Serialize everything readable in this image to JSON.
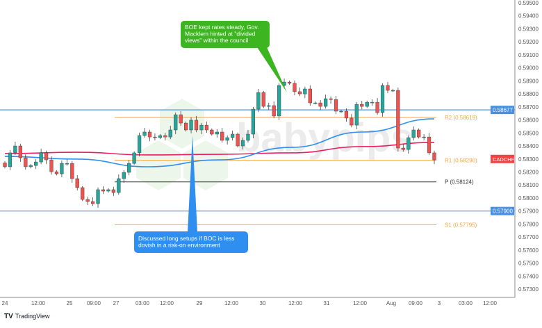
{
  "chart_data": {
    "type": "candlestick",
    "symbol": "CADCHF",
    "ylim": [
      0.5725,
      0.5955
    ],
    "y_ticks": [
      "0.59500",
      "0.59400",
      "0.59300",
      "0.59200",
      "0.59100",
      "0.59000",
      "0.58900",
      "0.58800",
      "0.58700",
      "0.58600",
      "0.58500",
      "0.58400",
      "0.58300",
      "0.58200",
      "0.58100",
      "0.58000",
      "0.57900",
      "0.57800",
      "0.57700",
      "0.57600",
      "0.57500",
      "0.57400",
      "0.57300"
    ],
    "x_ticks": [
      "24",
      "12:00",
      "25",
      "09:00",
      "27",
      "03:00",
      "12:00",
      "29",
      "12:00",
      "30",
      "12:00",
      "31",
      "12:00",
      "Aug",
      "09:00",
      "3",
      "03:00",
      "12:00"
    ],
    "closes": [
      0.5824,
      0.58347,
      0.584,
      0.58309,
      0.5824,
      0.5825,
      0.58277,
      0.58347,
      0.58293,
      0.58202,
      0.58186,
      0.58266,
      0.58266,
      0.58149,
      0.5808,
      0.57989,
      0.57973,
      0.57957,
      0.58064,
      0.58053,
      0.58064,
      0.58042,
      0.58149,
      0.58197,
      0.58266,
      0.58347,
      0.5848,
      0.58507,
      0.58469,
      0.58464,
      0.5848,
      0.58469,
      0.58523,
      0.5864,
      0.58576,
      0.58523,
      0.58598,
      0.58523,
      0.5856,
      0.58523,
      0.58491,
      0.58507,
      0.58443,
      0.58464,
      0.58491,
      0.584,
      0.58443,
      0.58491,
      0.58683,
      0.58811,
      0.58704,
      0.5871,
      0.5863,
      0.58865,
      0.58891,
      0.58881,
      0.58817,
      0.588,
      0.58838,
      0.58731,
      0.58731,
      0.58704,
      0.58763,
      0.58757,
      0.58667,
      0.58667,
      0.58614,
      0.5856,
      0.5872,
      0.58704,
      0.58736,
      0.58736,
      0.58656,
      0.58865,
      0.58827,
      0.58827,
      0.58384,
      0.58373,
      0.58464,
      0.58523,
      0.58469,
      0.58469,
      0.58347,
      0.58293
    ],
    "moving_averages": [
      {
        "color": "#e91e63",
        "values": [
          0.58341,
          0.58352,
          0.58331,
          0.58336,
          0.58347,
          0.58395,
          0.58427
        ]
      },
      {
        "color": "#2f8ff0",
        "values": [
          0.5832,
          0.58299,
          0.5824,
          0.58293,
          0.58389,
          0.58507,
          0.58608
        ]
      }
    ],
    "horizontal_levels": [
      {
        "value": 0.58677,
        "label": "0.58677",
        "color": "#4a90e2"
      },
      {
        "value": 0.579,
        "label": "0.57900",
        "color": "#4a90e2"
      }
    ],
    "pivots": [
      {
        "name": "R2",
        "value": 0.58619,
        "label": "R2 (0.58619)",
        "color": "#f5a646"
      },
      {
        "name": "R1",
        "value": 0.5829,
        "label": "R1 (0.58290)",
        "color": "#f5a646"
      },
      {
        "name": "P",
        "value": 0.58124,
        "label": "P (0.58124)",
        "color": "#333333"
      },
      {
        "name": "S1",
        "value": 0.57795,
        "label": "S1 (0.57795)",
        "color": "#f5a646"
      }
    ],
    "annotations": [
      {
        "text": [
          "BOE kept rates steady, Gov.",
          "Macklem hinted at \"divided",
          "views\" within the council"
        ],
        "color": "#3cb521"
      },
      {
        "text": [
          "Discussed long setups if BOC is less",
          "dovish in a risk-on environment"
        ],
        "color": "#2f8ff0"
      }
    ],
    "up_color": "#26a69a",
    "down_color": "#ef5350"
  },
  "symbol_badge": "CADCHF",
  "watermark": "babypips",
  "footer": {
    "brand": "TradingView"
  }
}
